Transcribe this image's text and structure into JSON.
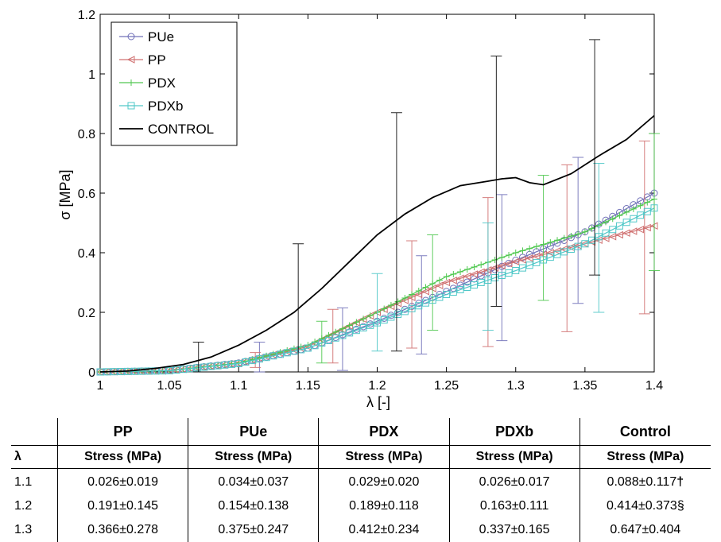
{
  "chart_data": {
    "type": "line",
    "xlabel": "λ [-]",
    "ylabel": "σ [MPa]",
    "xlim": [
      1,
      1.4
    ],
    "ylim": [
      0,
      1.2
    ],
    "xticks": [
      "1",
      "1.05",
      "1.1",
      "1.15",
      "1.2",
      "1.25",
      "1.3",
      "1.35",
      "1.4"
    ],
    "yticks": [
      "0",
      "0.2",
      "0.4",
      "0.6",
      "0.8",
      "1",
      "1.2"
    ],
    "grid": false,
    "legend_position": "top-left",
    "series": [
      {
        "name": "PUe",
        "color": "#7070b8",
        "marker": "circle",
        "x": [
          1.0,
          1.05,
          1.1,
          1.15,
          1.2,
          1.25,
          1.3,
          1.35,
          1.4
        ],
        "y": [
          0.0,
          0.005,
          0.03,
          0.08,
          0.17,
          0.27,
          0.375,
          0.47,
          0.6
        ],
        "errorbars": [
          [
            1.115,
            0.04,
            0.06
          ],
          [
            1.175,
            0.11,
            0.105
          ],
          [
            1.232,
            0.225,
            0.165
          ],
          [
            1.29,
            0.35,
            0.245
          ],
          [
            1.345,
            0.475,
            0.245
          ]
        ]
      },
      {
        "name": "PP",
        "color": "#d07070",
        "marker": "triangle-left",
        "x": [
          1.0,
          1.05,
          1.1,
          1.15,
          1.2,
          1.25,
          1.3,
          1.35,
          1.4
        ],
        "y": [
          0.0,
          0.004,
          0.03,
          0.085,
          0.2,
          0.3,
          0.37,
          0.43,
          0.49
        ],
        "errorbars": [
          [
            1.055,
            0.005,
            0.004
          ],
          [
            1.112,
            0.04,
            0.025
          ],
          [
            1.168,
            0.12,
            0.09
          ],
          [
            1.225,
            0.26,
            0.18
          ],
          [
            1.28,
            0.335,
            0.25
          ],
          [
            1.337,
            0.415,
            0.28
          ],
          [
            1.393,
            0.485,
            0.29
          ]
        ]
      },
      {
        "name": "PDX",
        "color": "#50c850",
        "marker": "plus",
        "x": [
          1.0,
          1.05,
          1.1,
          1.15,
          1.2,
          1.25,
          1.3,
          1.35,
          1.4
        ],
        "y": [
          0.0,
          0.004,
          0.03,
          0.09,
          0.2,
          0.32,
          0.4,
          0.47,
          0.58
        ],
        "errorbars": [
          [
            1.16,
            0.1,
            0.07
          ],
          [
            1.24,
            0.3,
            0.16
          ],
          [
            1.32,
            0.45,
            0.21
          ],
          [
            1.4,
            0.57,
            0.23
          ]
        ]
      },
      {
        "name": "PDXb",
        "color": "#50c8c8",
        "marker": "square",
        "x": [
          1.0,
          1.05,
          1.1,
          1.15,
          1.2,
          1.25,
          1.3,
          1.35,
          1.4
        ],
        "y": [
          0.0,
          0.004,
          0.028,
          0.08,
          0.165,
          0.26,
          0.34,
          0.43,
          0.55
        ],
        "errorbars": [
          [
            1.2,
            0.2,
            0.13
          ],
          [
            1.28,
            0.32,
            0.18
          ],
          [
            1.36,
            0.45,
            0.25
          ]
        ]
      },
      {
        "name": "CONTROL",
        "color": "#000000",
        "marker": "none",
        "x": [
          1.0,
          1.02,
          1.04,
          1.06,
          1.08,
          1.1,
          1.12,
          1.14,
          1.16,
          1.18,
          1.2,
          1.22,
          1.24,
          1.26,
          1.28,
          1.29,
          1.3,
          1.31,
          1.32,
          1.34,
          1.36,
          1.38,
          1.4
        ],
        "y": [
          0.0,
          0.003,
          0.012,
          0.025,
          0.05,
          0.09,
          0.14,
          0.2,
          0.28,
          0.37,
          0.46,
          0.53,
          0.585,
          0.625,
          0.64,
          0.648,
          0.652,
          0.635,
          0.628,
          0.665,
          0.725,
          0.78,
          0.86
        ],
        "errorbars": [
          [
            1.071,
            0.045,
            0.055
          ],
          [
            1.143,
            0.2,
            0.23
          ],
          [
            1.214,
            0.47,
            0.4
          ],
          [
            1.286,
            0.64,
            0.42
          ],
          [
            1.357,
            0.72,
            0.395
          ]
        ]
      }
    ]
  },
  "table": {
    "lambda_header": "λ",
    "columns": [
      {
        "name": "PP",
        "sub": "Stress (MPa)"
      },
      {
        "name": "PUe",
        "sub": "Stress (MPa)"
      },
      {
        "name": "PDX",
        "sub": "Stress (MPa)"
      },
      {
        "name": "PDXb",
        "sub": "Stress (MPa)"
      },
      {
        "name": "Control",
        "sub": "Stress (MPa)"
      }
    ],
    "rows": [
      {
        "lambda": "1.1",
        "values": [
          "0.026±0.019",
          "0.034±0.037",
          "0.029±0.020",
          "0.026±0.017",
          "0.088±0.117"
        ],
        "control_mark": "†"
      },
      {
        "lambda": "1.2",
        "values": [
          "0.191±0.145",
          "0.154±0.138",
          "0.189±0.118",
          "0.163±0.111",
          "0.414±0.373"
        ],
        "control_mark": "§"
      },
      {
        "lambda": "1.3",
        "values": [
          "0.366±0.278",
          "0.375±0.247",
          "0.412±0.234",
          "0.337±0.165",
          "0.647±0.404"
        ],
        "control_mark": ""
      }
    ]
  }
}
